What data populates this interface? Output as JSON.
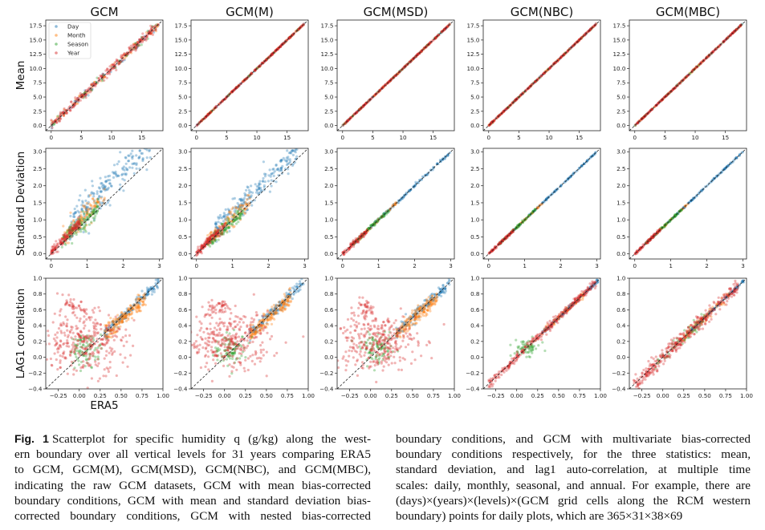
{
  "figure": {
    "column_titles": [
      "GCM",
      "GCM(M)",
      "GCM(MSD)",
      "GCM(NBC)",
      "GCM(MBC)"
    ],
    "row_labels": [
      "Mean",
      "Standard Deviation",
      "LAG1 correlation"
    ],
    "xlabel": "ERA5",
    "legend": [
      {
        "label": "Day",
        "color": "#1f77b4"
      },
      {
        "label": "Month",
        "color": "#ff7f0e"
      },
      {
        "label": "Season",
        "color": "#2ca02c"
      },
      {
        "label": "Year",
        "color": "#d62728"
      }
    ]
  },
  "chart_data": [
    {
      "type": "scatter",
      "row": "Mean",
      "xlim": [
        -0.9,
        18.5
      ],
      "ylim": [
        -0.9,
        18.5
      ],
      "xticks": [
        "0",
        "5",
        "10",
        "15"
      ],
      "yticks": [
        "0.0",
        "2.5",
        "5.0",
        "7.5",
        "10.0",
        "12.5",
        "15.0",
        "17.5"
      ],
      "reference_line": "y = x (dashed)"
    },
    {
      "type": "scatter",
      "row": "Standard Deviation",
      "xlim": [
        -0.15,
        3.1
      ],
      "ylim": [
        -0.15,
        3.1
      ],
      "xticks": [
        "0",
        "1",
        "2",
        "3"
      ],
      "yticks": [
        "0.0",
        "0.5",
        "1.0",
        "1.5",
        "2.0",
        "2.5",
        "3.0"
      ],
      "reference_line": "y = x (dashed)"
    },
    {
      "type": "scatter",
      "row": "LAG1 correlation",
      "xlim": [
        -0.4,
        1.0
      ],
      "ylim": [
        -0.4,
        1.0
      ],
      "xticks": [
        "−0.25",
        "0.00",
        "0.25",
        "0.50",
        "0.75",
        "1.00"
      ],
      "yticks": [
        "−0.4",
        "−0.2",
        "0.0",
        "0.2",
        "0.4",
        "0.6",
        "0.8",
        "1.0"
      ],
      "reference_line": "y = x (dashed)"
    }
  ],
  "caption": {
    "label": "Fig. 1",
    "left_lines": [
      "Scatterplot for specific humidity q (g/kg) along the west-",
      "ern boundary over all vertical levels for 31 years comparing ERA5",
      "to GCM, GCM(M), GCM(MSD), GCM(NBC), and GCM(MBC),",
      "indicating the raw GCM datasets, GCM with mean bias-corrected",
      "boundary conditions, GCM with mean and standard deviation bias-",
      "corrected boundary conditions, GCM with nested bias-corrected"
    ],
    "right_lines": [
      "boundary conditions, and GCM with multivariate bias-corrected",
      "boundary conditions respectively, for the three statistics: mean,",
      "standard deviation, and lag1 auto-correlation, at multiple time",
      "scales: daily, monthly, seasonal, and annual. For example, there are",
      "(days)×(years)×(levels)×(GCM grid cells along the RCM western",
      "boundary) points for daily plots, which are 365×31×38×69"
    ]
  }
}
